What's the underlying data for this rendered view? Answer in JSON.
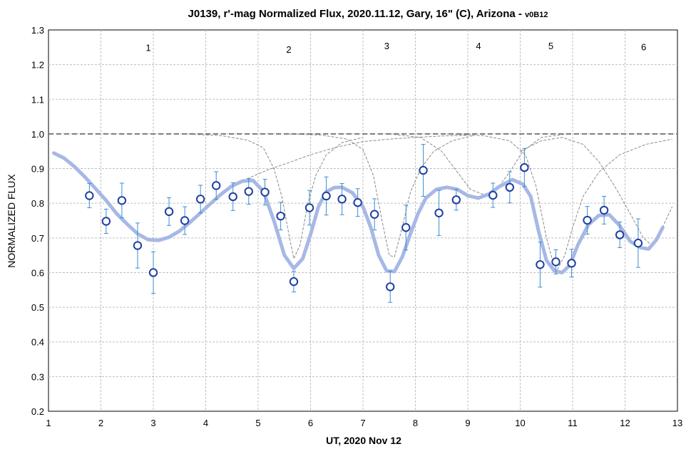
{
  "chart_data": {
    "type": "scatter",
    "title": "J0139, r'-mag Normalized Flux, 2020.11.12, Gary, 16\" (C), Arizona - ",
    "title_suffix": "v0B12",
    "xlabel": "UT, 2020 Nov 12",
    "ylabel": "NORMALIZED FLUX",
    "xlim": [
      1,
      13
    ],
    "ylim": [
      0.2,
      1.3
    ],
    "x_ticks": [
      1,
      2,
      3,
      4,
      5,
      6,
      7,
      8,
      9,
      10,
      11,
      12,
      13
    ],
    "y_ticks": [
      0.2,
      0.3,
      0.4,
      0.5,
      0.6,
      0.7,
      0.8,
      0.9,
      1.0,
      1.1,
      1.2,
      1.3
    ],
    "grid": true,
    "reference_line": 1.0,
    "colors": {
      "marker_edge": "#1f3fa0",
      "error_bar": "#3a8fd0",
      "model": "#a7b8e6",
      "component": "#8a8a8a",
      "reference": "#7a7a7a",
      "grid": "#bfbfbf"
    },
    "events": [
      {
        "label": "1",
        "x": 3.0,
        "y": 1.25
      },
      {
        "label": "2",
        "x": 5.68,
        "y": 1.245
      },
      {
        "label": "3",
        "x": 7.55,
        "y": 1.255
      },
      {
        "label": "4",
        "x": 9.3,
        "y": 1.255
      },
      {
        "label": "5",
        "x": 10.68,
        "y": 1.255
      },
      {
        "label": "6",
        "x": 12.45,
        "y": 1.252
      }
    ],
    "series": [
      {
        "kind": "observed",
        "points": [
          {
            "x": 1.78,
            "y": 0.822,
            "err": 0.035
          },
          {
            "x": 2.1,
            "y": 0.748,
            "err": 0.035
          },
          {
            "x": 2.4,
            "y": 0.808,
            "err": 0.05
          },
          {
            "x": 2.7,
            "y": 0.678,
            "err": 0.065
          },
          {
            "x": 3.0,
            "y": 0.6,
            "err": 0.06
          },
          {
            "x": 3.3,
            "y": 0.776,
            "err": 0.04
          },
          {
            "x": 3.6,
            "y": 0.75,
            "err": 0.04
          },
          {
            "x": 3.9,
            "y": 0.812,
            "err": 0.04
          },
          {
            "x": 4.2,
            "y": 0.851,
            "err": 0.04
          },
          {
            "x": 4.52,
            "y": 0.819,
            "err": 0.04
          },
          {
            "x": 4.82,
            "y": 0.834,
            "err": 0.037
          },
          {
            "x": 5.13,
            "y": 0.832,
            "err": 0.037
          },
          {
            "x": 5.43,
            "y": 0.763,
            "err": 0.04
          },
          {
            "x": 5.68,
            "y": 0.574,
            "err": 0.03
          },
          {
            "x": 5.98,
            "y": 0.787,
            "err": 0.05
          },
          {
            "x": 6.3,
            "y": 0.821,
            "err": 0.055
          },
          {
            "x": 6.6,
            "y": 0.812,
            "err": 0.045
          },
          {
            "x": 6.9,
            "y": 0.802,
            "err": 0.04
          },
          {
            "x": 7.22,
            "y": 0.768,
            "err": 0.045
          },
          {
            "x": 7.52,
            "y": 0.559,
            "err": 0.045
          },
          {
            "x": 7.82,
            "y": 0.73,
            "err": 0.065
          },
          {
            "x": 8.15,
            "y": 0.895,
            "err": 0.075
          },
          {
            "x": 8.45,
            "y": 0.772,
            "err": 0.065
          },
          {
            "x": 8.78,
            "y": 0.81,
            "err": 0.03
          },
          {
            "x": 9.48,
            "y": 0.823,
            "err": 0.035
          },
          {
            "x": 9.8,
            "y": 0.846,
            "err": 0.045
          },
          {
            "x": 10.08,
            "y": 0.903,
            "err": 0.055
          },
          {
            "x": 10.38,
            "y": 0.623,
            "err": 0.065
          },
          {
            "x": 10.68,
            "y": 0.631,
            "err": 0.035
          },
          {
            "x": 10.98,
            "y": 0.627,
            "err": 0.04
          },
          {
            "x": 11.28,
            "y": 0.751,
            "err": 0.04
          },
          {
            "x": 11.6,
            "y": 0.78,
            "err": 0.04
          },
          {
            "x": 11.9,
            "y": 0.709,
            "err": 0.037
          },
          {
            "x": 12.25,
            "y": 0.685,
            "err": 0.07
          }
        ]
      },
      {
        "kind": "model",
        "line_type": "line",
        "points": [
          [
            1.1,
            0.945
          ],
          [
            1.3,
            0.93
          ],
          [
            1.5,
            0.905
          ],
          [
            1.7,
            0.875
          ],
          [
            1.9,
            0.842
          ],
          [
            2.1,
            0.808
          ],
          [
            2.3,
            0.77
          ],
          [
            2.5,
            0.74
          ],
          [
            2.7,
            0.712
          ],
          [
            2.9,
            0.695
          ],
          [
            3.1,
            0.693
          ],
          [
            3.3,
            0.702
          ],
          [
            3.5,
            0.72
          ],
          [
            3.7,
            0.745
          ],
          [
            3.9,
            0.772
          ],
          [
            4.1,
            0.8
          ],
          [
            4.3,
            0.827
          ],
          [
            4.5,
            0.85
          ],
          [
            4.7,
            0.864
          ],
          [
            4.9,
            0.866
          ],
          [
            5.1,
            0.835
          ],
          [
            5.3,
            0.75
          ],
          [
            5.5,
            0.65
          ],
          [
            5.68,
            0.612
          ],
          [
            5.85,
            0.64
          ],
          [
            6.0,
            0.71
          ],
          [
            6.15,
            0.79
          ],
          [
            6.3,
            0.833
          ],
          [
            6.45,
            0.845
          ],
          [
            6.6,
            0.846
          ],
          [
            6.8,
            0.83
          ],
          [
            7.0,
            0.79
          ],
          [
            7.15,
            0.73
          ],
          [
            7.3,
            0.65
          ],
          [
            7.45,
            0.605
          ],
          [
            7.6,
            0.603
          ],
          [
            7.75,
            0.645
          ],
          [
            7.9,
            0.71
          ],
          [
            8.05,
            0.77
          ],
          [
            8.2,
            0.815
          ],
          [
            8.4,
            0.84
          ],
          [
            8.6,
            0.846
          ],
          [
            8.8,
            0.84
          ],
          [
            9.0,
            0.822
          ],
          [
            9.2,
            0.815
          ],
          [
            9.4,
            0.826
          ],
          [
            9.6,
            0.848
          ],
          [
            9.85,
            0.868
          ],
          [
            10.05,
            0.855
          ],
          [
            10.2,
            0.82
          ],
          [
            10.35,
            0.72
          ],
          [
            10.5,
            0.635
          ],
          [
            10.65,
            0.605
          ],
          [
            10.8,
            0.6
          ],
          [
            10.95,
            0.622
          ],
          [
            11.1,
            0.68
          ],
          [
            11.3,
            0.738
          ],
          [
            11.5,
            0.765
          ],
          [
            11.7,
            0.767
          ],
          [
            11.9,
            0.735
          ],
          [
            12.1,
            0.69
          ],
          [
            12.3,
            0.672
          ],
          [
            12.45,
            0.668
          ],
          [
            12.6,
            0.695
          ],
          [
            12.72,
            0.73
          ]
        ]
      },
      {
        "kind": "component",
        "line_type": "dashed",
        "points": [
          [
            1.1,
            0.945
          ],
          [
            1.5,
            0.905
          ],
          [
            1.9,
            0.842
          ],
          [
            2.3,
            0.77
          ],
          [
            2.7,
            0.712
          ],
          [
            3.0,
            0.692
          ],
          [
            3.3,
            0.702
          ],
          [
            3.7,
            0.745
          ],
          [
            4.1,
            0.8
          ],
          [
            4.5,
            0.85
          ],
          [
            4.9,
            0.878
          ],
          [
            5.2,
            0.897
          ],
          [
            5.6,
            0.918
          ],
          [
            6.0,
            0.94
          ],
          [
            6.5,
            0.962
          ],
          [
            7.0,
            0.978
          ],
          [
            7.5,
            0.985
          ],
          [
            8.0,
            0.99
          ],
          [
            8.5,
            0.994
          ],
          [
            9.0,
            0.996
          ]
        ]
      },
      {
        "kind": "component",
        "line_type": "dashed",
        "points": [
          [
            3.6,
            1.0
          ],
          [
            4.3,
            0.995
          ],
          [
            4.8,
            0.982
          ],
          [
            5.1,
            0.96
          ],
          [
            5.3,
            0.9
          ],
          [
            5.45,
            0.82
          ],
          [
            5.6,
            0.7
          ],
          [
            5.68,
            0.64
          ],
          [
            5.8,
            0.68
          ],
          [
            5.95,
            0.8
          ],
          [
            6.1,
            0.88
          ],
          [
            6.3,
            0.94
          ],
          [
            6.6,
            0.975
          ],
          [
            7.0,
            0.99
          ]
        ]
      },
      {
        "kind": "component",
        "line_type": "dashed",
        "points": [
          [
            5.5,
            1.0
          ],
          [
            6.2,
            0.997
          ],
          [
            6.7,
            0.985
          ],
          [
            7.0,
            0.955
          ],
          [
            7.2,
            0.88
          ],
          [
            7.35,
            0.76
          ],
          [
            7.5,
            0.65
          ],
          [
            7.6,
            0.645
          ],
          [
            7.75,
            0.73
          ],
          [
            7.9,
            0.83
          ],
          [
            8.1,
            0.9
          ],
          [
            8.35,
            0.95
          ],
          [
            8.7,
            0.98
          ],
          [
            9.1,
            0.995
          ]
        ]
      },
      {
        "kind": "component",
        "line_type": "dashed",
        "points": [
          [
            7.5,
            1.0
          ],
          [
            8.1,
            0.99
          ],
          [
            8.5,
            0.95
          ],
          [
            8.8,
            0.89
          ],
          [
            9.05,
            0.84
          ],
          [
            9.3,
            0.825
          ],
          [
            9.55,
            0.84
          ],
          [
            9.8,
            0.89
          ],
          [
            10.05,
            0.95
          ],
          [
            10.4,
            0.99
          ],
          [
            10.9,
            1.0
          ]
        ]
      },
      {
        "kind": "component",
        "line_type": "dashed",
        "points": [
          [
            8.6,
            1.0
          ],
          [
            9.3,
            0.995
          ],
          [
            9.8,
            0.98
          ],
          [
            10.1,
            0.94
          ],
          [
            10.3,
            0.85
          ],
          [
            10.5,
            0.7
          ],
          [
            10.68,
            0.6
          ],
          [
            10.85,
            0.65
          ],
          [
            11.0,
            0.73
          ],
          [
            11.2,
            0.82
          ],
          [
            11.5,
            0.89
          ],
          [
            11.9,
            0.94
          ],
          [
            12.4,
            0.97
          ],
          [
            12.9,
            0.985
          ]
        ]
      },
      {
        "kind": "component",
        "line_type": "dashed",
        "points": [
          [
            10.0,
            0.95
          ],
          [
            10.4,
            0.98
          ],
          [
            10.8,
            0.99
          ],
          [
            11.2,
            0.97
          ],
          [
            11.5,
            0.92
          ],
          [
            11.8,
            0.85
          ],
          [
            12.1,
            0.77
          ],
          [
            12.35,
            0.7
          ],
          [
            12.5,
            0.68
          ],
          [
            12.65,
            0.71
          ],
          [
            12.9,
            0.79
          ]
        ]
      }
    ]
  }
}
